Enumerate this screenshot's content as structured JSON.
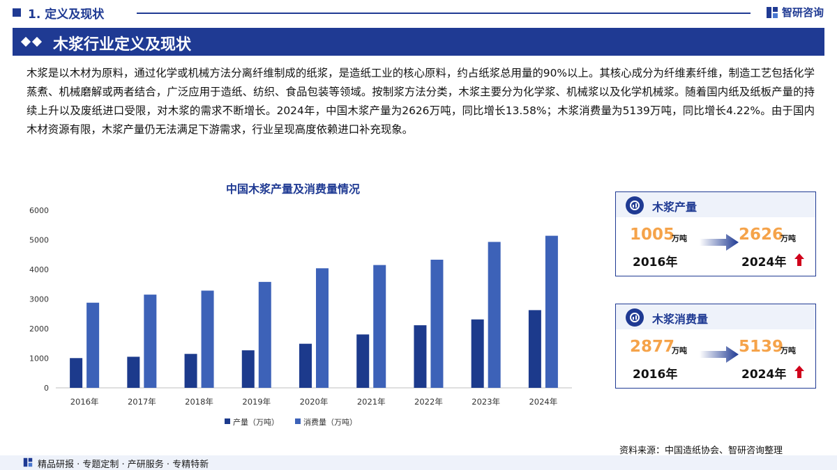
{
  "header": {
    "section_title": "1. 定义及现状",
    "brand": "智研咨询"
  },
  "banner": {
    "title": "木浆行业定义及现状"
  },
  "intro": "木浆是以木材为原料，通过化学或机械方法分离纤维制成的纸浆，是造纸工业的核心原料，约占纸浆总用量的90%以上。其核心成分为纤维素纤维，制造工艺包括化学蒸煮、机械磨解或两者结合，广泛应用于造纸、纺织、食品包装等领域。按制浆方法分类，木浆主要分为化学浆、机械浆以及化学机械浆。随着国内纸及纸板产量的持续上升以及废纸进口受限，对木浆的需求不断增长。2024年，中国木浆产量为2626万吨，同比增长13.58%；木浆消费量为5139万吨，同比增长4.22%。由于国内木材资源有限，木浆产量仍无法满足下游需求，行业呈现高度依赖进口补充现象。",
  "chart_data": {
    "type": "bar",
    "title": "中国木浆产量及消费量情况",
    "categories": [
      "2016年",
      "2017年",
      "2018年",
      "2019年",
      "2020年",
      "2021年",
      "2022年",
      "2023年",
      "2024年"
    ],
    "series": [
      {
        "name": "产量（万吨）",
        "color": "#1c3a8c",
        "values": [
          1005,
          1050,
          1147,
          1268,
          1490,
          1804,
          2115,
          2312,
          2626
        ]
      },
      {
        "name": "消费量（万吨）",
        "color": "#3d62b8",
        "values": [
          2877,
          3150,
          3285,
          3580,
          4040,
          4150,
          4330,
          4931,
          5139
        ]
      }
    ],
    "ylim": [
      0,
      6000
    ],
    "yticks": [
      0,
      1000,
      2000,
      3000,
      4000,
      5000,
      6000
    ],
    "grid": false,
    "legend": "bottom"
  },
  "cards": [
    {
      "label": "木浆产量",
      "from_value": "1005",
      "from_unit": "万吨",
      "from_year": "2016年",
      "to_value": "2626",
      "to_unit": "万吨",
      "to_year": "2024年"
    },
    {
      "label": "木浆消费量",
      "from_value": "2877",
      "from_unit": "万吨",
      "from_year": "2016年",
      "to_value": "5139",
      "to_unit": "万吨",
      "to_year": "2024年"
    }
  ],
  "source": "资料来源：中国造纸协会、智研咨询整理",
  "footer": "精品研报 · 专题定制 · 产研服务 · 专精特新",
  "colors": {
    "brand": "#1f3a93",
    "accent_value": "#f5a34a",
    "up_arrow": "#d0021b"
  }
}
